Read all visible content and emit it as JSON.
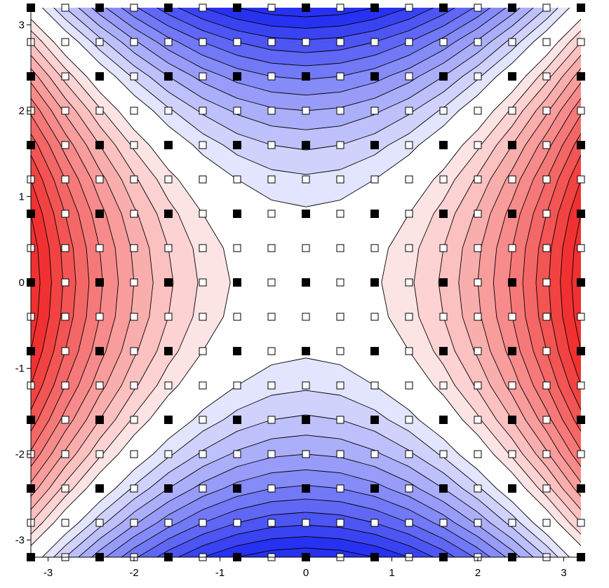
{
  "chart_data": {
    "type": "heatmap",
    "title": "",
    "xlabel": "",
    "ylabel": "",
    "function": "x^2 - y^2",
    "xlim": [
      -3.2,
      3.2
    ],
    "ylim": [
      -3.2,
      3.2
    ],
    "x_ticks": [
      -3,
      -2,
      -1,
      0,
      1,
      2,
      3
    ],
    "y_ticks": [
      -3,
      -2,
      -1,
      0,
      1,
      2,
      3
    ],
    "x_tick_labels": [
      "-3",
      "-2",
      "-1",
      "0",
      "1",
      "2",
      "3"
    ],
    "y_tick_labels": [
      "-3",
      "-2",
      "-1",
      "0",
      "1",
      "2",
      "3"
    ],
    "grid": {
      "x_start": -3.2,
      "x_step": 0.4,
      "nx": 17,
      "y_start": -3.2,
      "y_step": 0.4,
      "ny": 17,
      "filled_marker_every": 2
    },
    "contour_levels": [
      -9.6,
      -8.8,
      -8.0,
      -7.2,
      -6.4,
      -5.6,
      -4.8,
      -4.0,
      -3.2,
      -2.4,
      -1.6,
      -0.8,
      0.0,
      0.8,
      1.6,
      2.4,
      3.2,
      4.0,
      4.8,
      5.6,
      6.4,
      7.2,
      8.0,
      8.8,
      9.6
    ],
    "colors": {
      "negative": "#1e28f0",
      "zero": "#ffffff",
      "positive": "#f02828",
      "lines": "#000000",
      "marker_filled": "#000000",
      "marker_hollow": "#ffffff"
    },
    "grid_lines": false
  }
}
